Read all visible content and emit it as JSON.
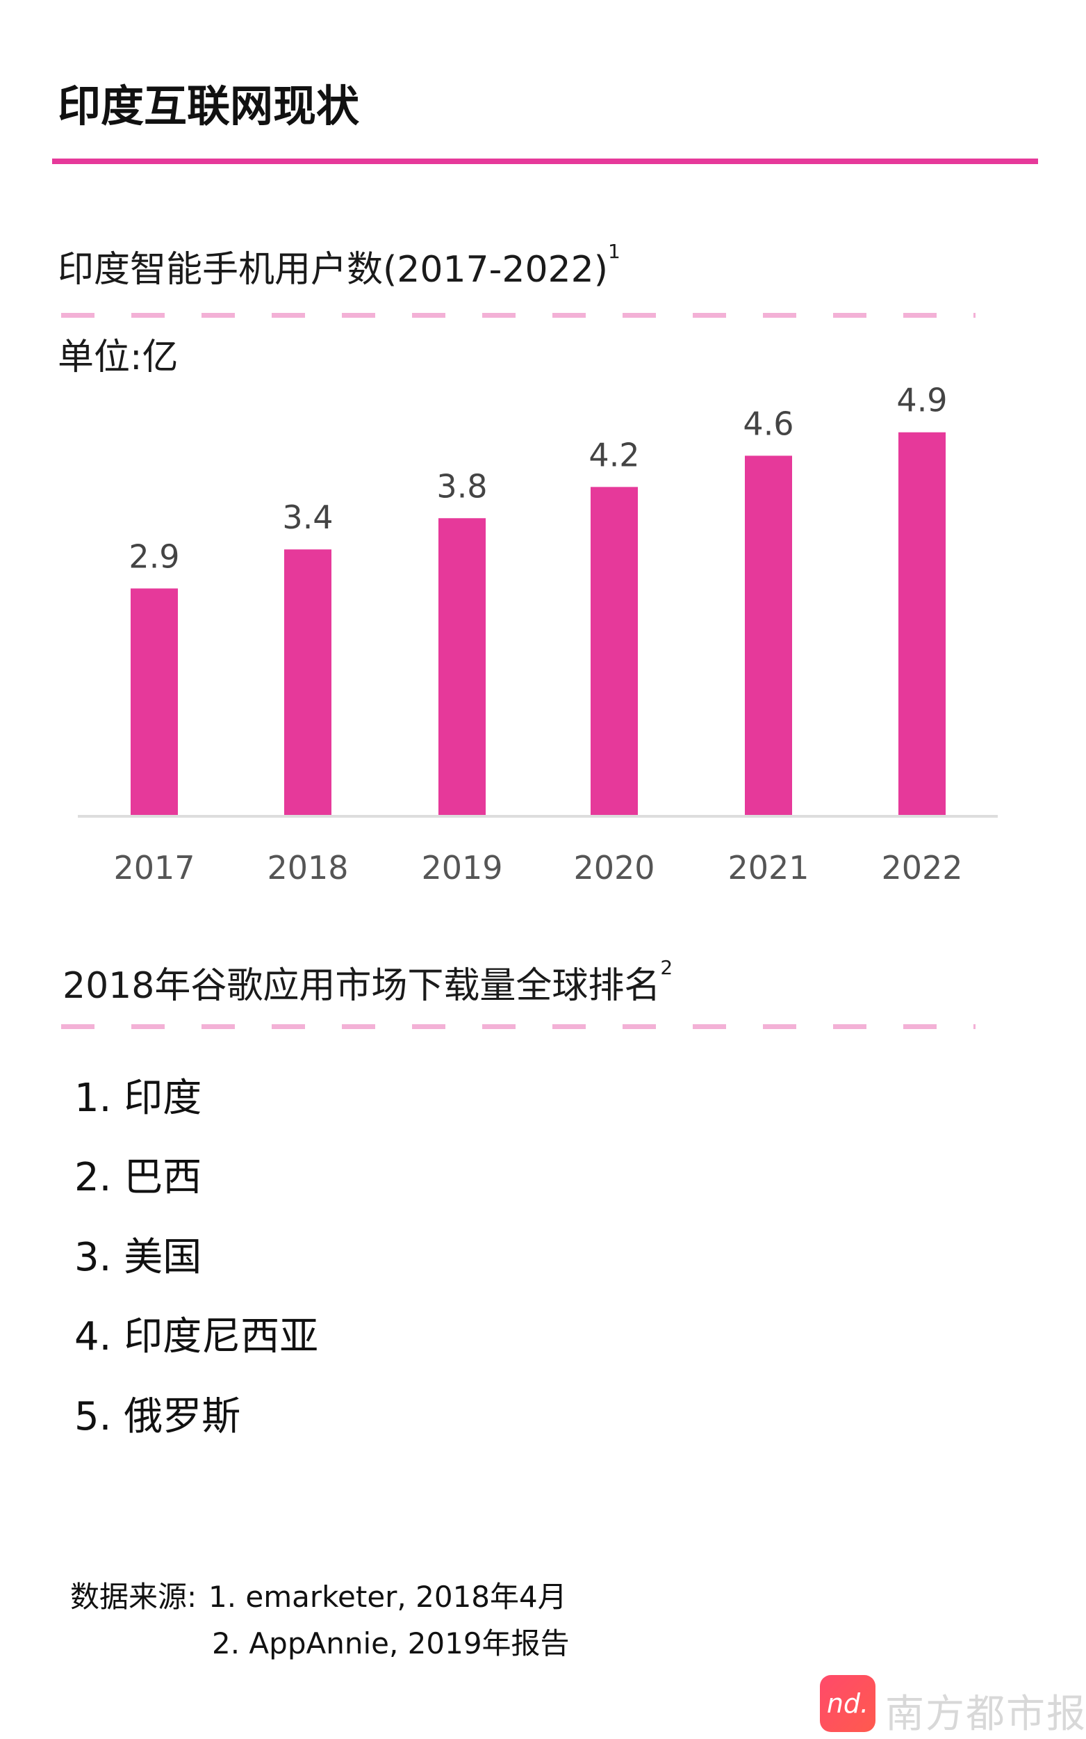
{
  "title": "印度互联网现状",
  "accent_color": "#e6399a",
  "chart_data": {
    "type": "bar",
    "title": "印度智能手机用户数(2017-2022)",
    "title_footnote": "1",
    "unit_label": "单位:亿",
    "categories": [
      "2017",
      "2018",
      "2019",
      "2020",
      "2021",
      "2022"
    ],
    "values": [
      2.9,
      3.4,
      3.8,
      4.2,
      4.6,
      4.9
    ],
    "value_labels": [
      "2.9",
      "3.4",
      "3.8",
      "4.2",
      "4.6",
      "4.9"
    ],
    "ylim": [
      0,
      4.9
    ],
    "grid": false,
    "bar_color": "#e6399a"
  },
  "ranking": {
    "title": "2018年谷歌应用市场下载量全球排名",
    "title_footnote": "2",
    "items": [
      "1. 印度",
      "2. 巴西",
      "3. 美国",
      "4. 印度尼西亚",
      "5. 俄罗斯"
    ]
  },
  "sources": {
    "label": "数据来源:",
    "lines": [
      "1. emarketer, 2018年4月",
      "2. AppAnnie, 2019年报告"
    ]
  },
  "logo": {
    "mark": "nd.",
    "brand": "南方都市报"
  }
}
